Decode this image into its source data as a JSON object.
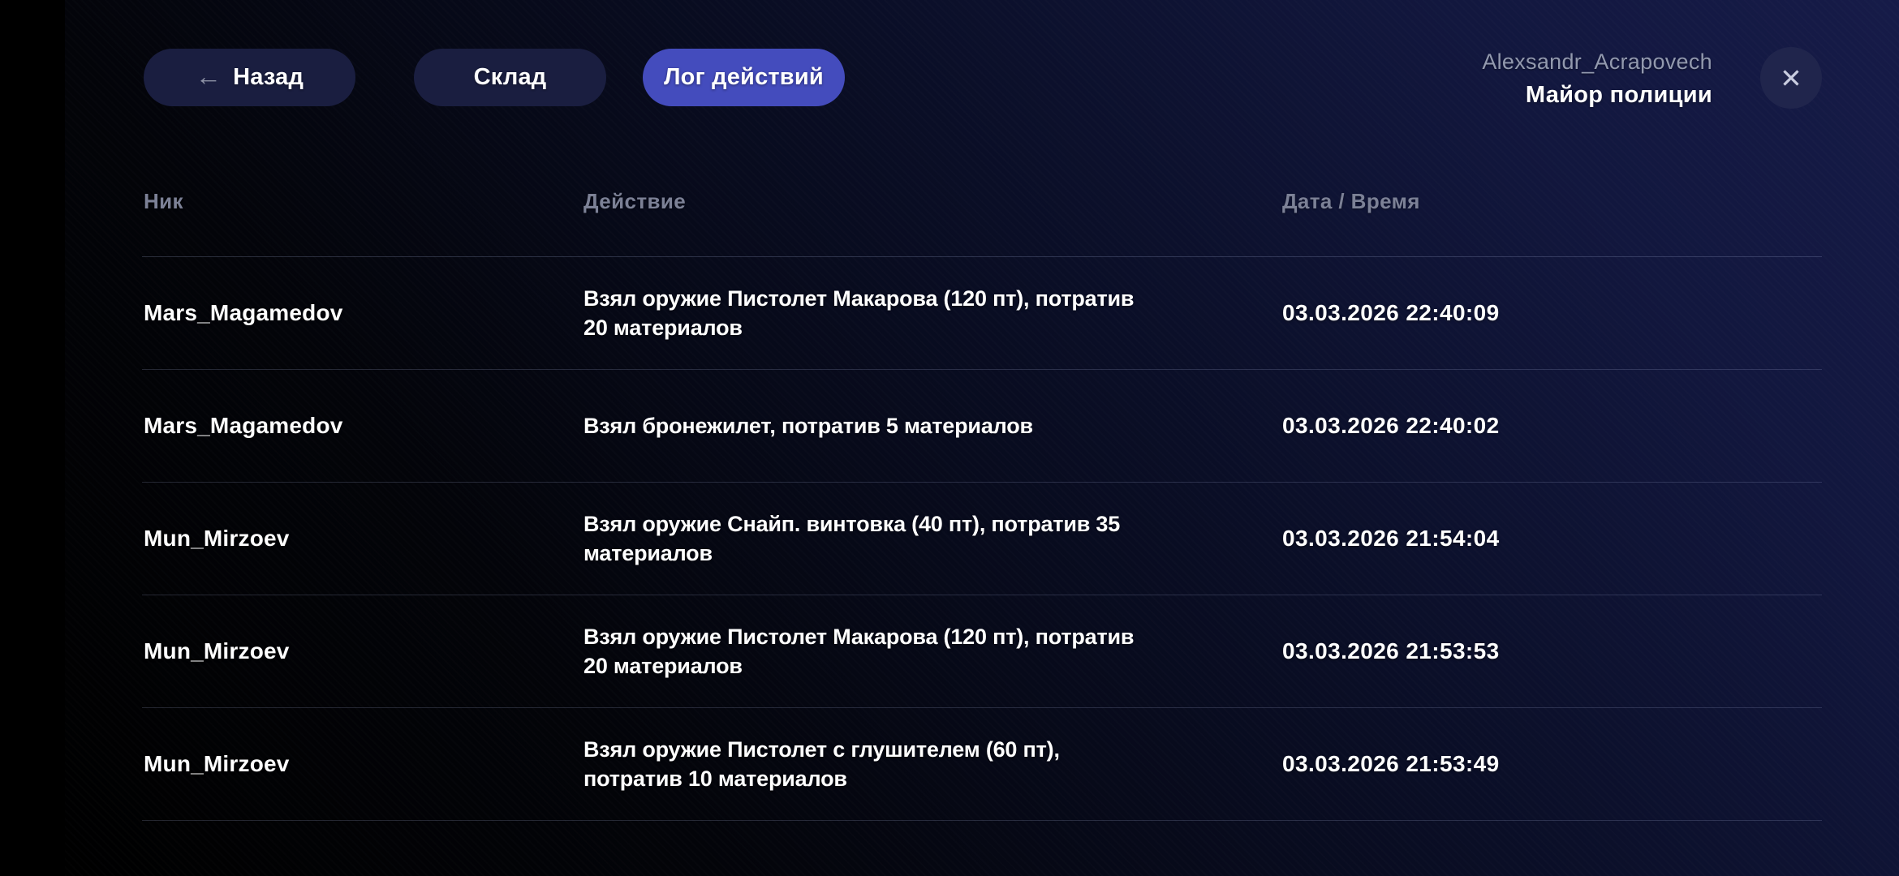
{
  "header": {
    "back_button": {
      "label": "Назад",
      "arrow_icon": "←"
    },
    "tabs": [
      {
        "label": "Склад",
        "active": false
      },
      {
        "label": "Лог действий",
        "active": true
      }
    ],
    "user": {
      "name": "Alexsandr_Acrapovech",
      "rank": "Майор полиции"
    },
    "close_icon": "✕"
  },
  "table": {
    "columns": [
      "Ник",
      "Действие",
      "Дата / Время"
    ],
    "rows": [
      {
        "nick": "Mars_Magamedov",
        "action": "Взял оружие Пистолет Макарова (120 пт), потратив 20 материалов",
        "datetime": "03.03.2026 22:40:09"
      },
      {
        "nick": "Mars_Magamedov",
        "action": "Взял бронежилет, потратив 5 материалов",
        "datetime": "03.03.2026 22:40:02"
      },
      {
        "nick": "Mun_Mirzoev",
        "action": "Взял оружие Снайп. винтовка (40 пт), потратив 35 материалов",
        "datetime": "03.03.2026 21:54:04"
      },
      {
        "nick": "Mun_Mirzoev",
        "action": "Взял оружие Пистолет Макарова (120 пт), потратив 20 материалов",
        "datetime": "03.03.2026 21:53:53"
      },
      {
        "nick": "Mun_Mirzoev",
        "action": "Взял оружие Пистолет с глушителем (60 пт), потратив 10 материалов",
        "datetime": "03.03.2026 21:53:49"
      }
    ]
  },
  "colors": {
    "accent_active_tab": "#444cbd",
    "inactive_tab": "#1a1e40",
    "background_navy": "#161b48",
    "close_circle": "#20254c",
    "muted_text": "#7c8196",
    "username_text": "#9299ae",
    "primary_text": "#ffffff"
  }
}
